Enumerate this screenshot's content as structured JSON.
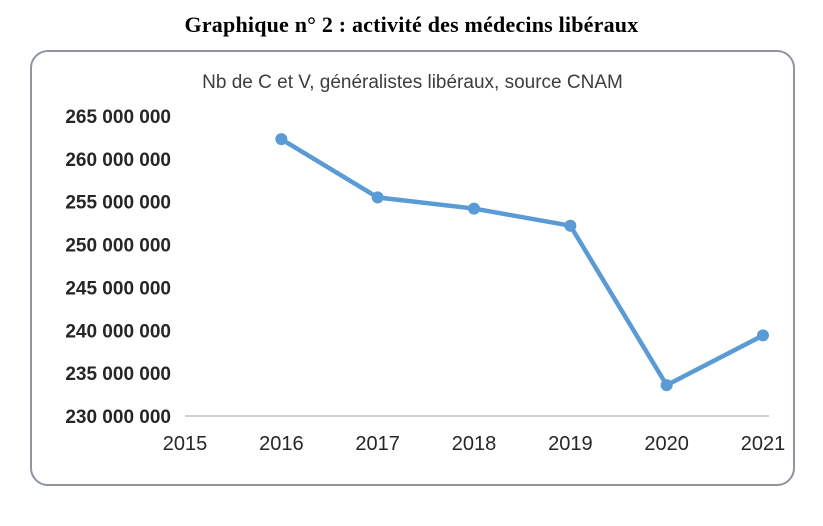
{
  "page": {
    "title": "Graphique n° 2 : activité des médecins libéraux"
  },
  "chart_data": {
    "type": "line",
    "title": "Nb de C et V, généralistes libéraux, source CNAM",
    "x": [
      2016,
      2017,
      2018,
      2019,
      2020,
      2021
    ],
    "values": [
      262300000,
      255500000,
      254200000,
      252200000,
      233600000,
      239400000
    ],
    "series_name": "Nb de C et V généralistes libéraux",
    "x_range": [
      2015,
      2021
    ],
    "x_ticks": [
      "2015",
      "2016",
      "2017",
      "2018",
      "2019",
      "2020",
      "2021"
    ],
    "ylim": [
      230000000,
      265000000
    ],
    "y_tick_values": [
      230000000,
      235000000,
      240000000,
      245000000,
      250000000,
      255000000,
      260000000,
      265000000
    ],
    "y_ticks": [
      "230 000 000",
      "235 000 000",
      "240 000 000",
      "245 000 000",
      "250 000 000",
      "255 000 000",
      "260 000 000",
      "265 000 000"
    ],
    "line_color": "#5b9bd5",
    "axis_line_color": "#bfbfbf",
    "marker": "circle",
    "grid": false,
    "legend": false,
    "xlabel": "",
    "ylabel": ""
  }
}
